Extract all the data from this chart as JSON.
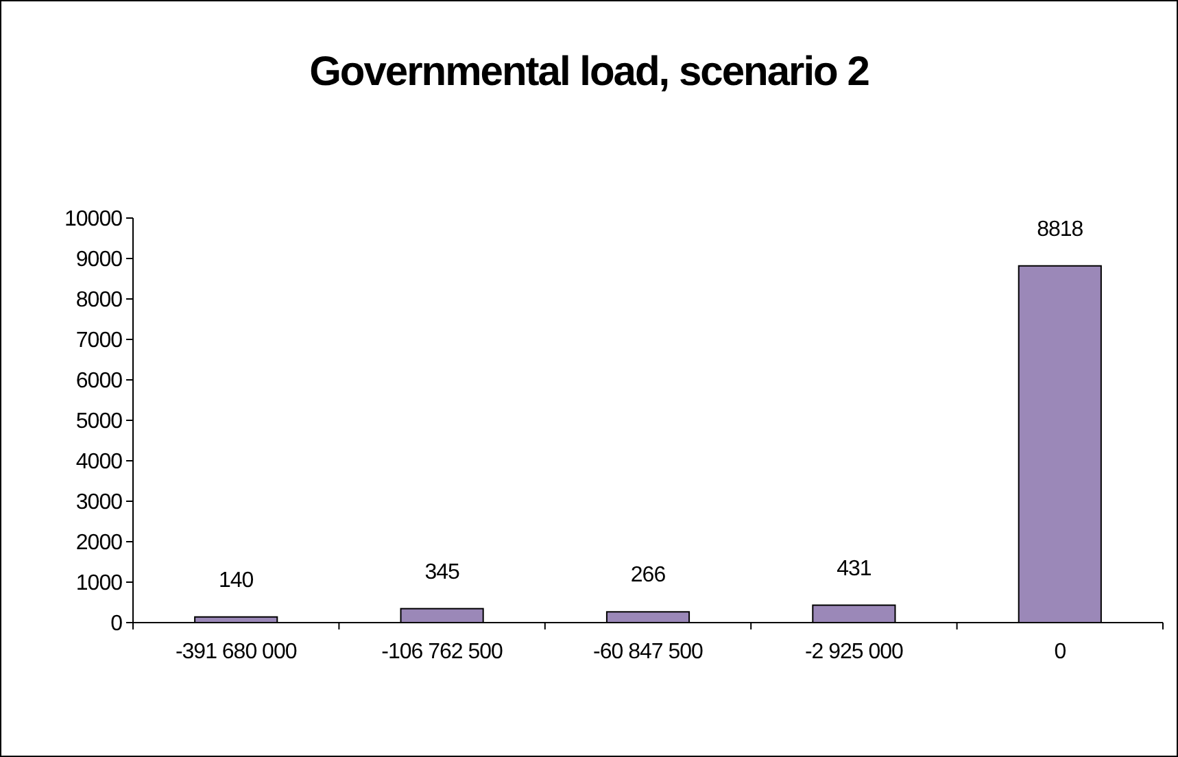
{
  "chart_data": {
    "type": "bar",
    "title": "Governmental load, scenario 2",
    "categories": [
      "-391 680 000",
      "-106 762 500",
      "-60 847 500",
      "-2 925 000",
      "0"
    ],
    "values": [
      140,
      345,
      266,
      431,
      8818
    ],
    "color": "#9b88b8",
    "ylim": [
      0,
      10000
    ],
    "yticks": [
      0,
      1000,
      2000,
      3000,
      4000,
      5000,
      6000,
      7000,
      8000,
      9000,
      10000
    ],
    "data_labels": true,
    "grid": false
  }
}
